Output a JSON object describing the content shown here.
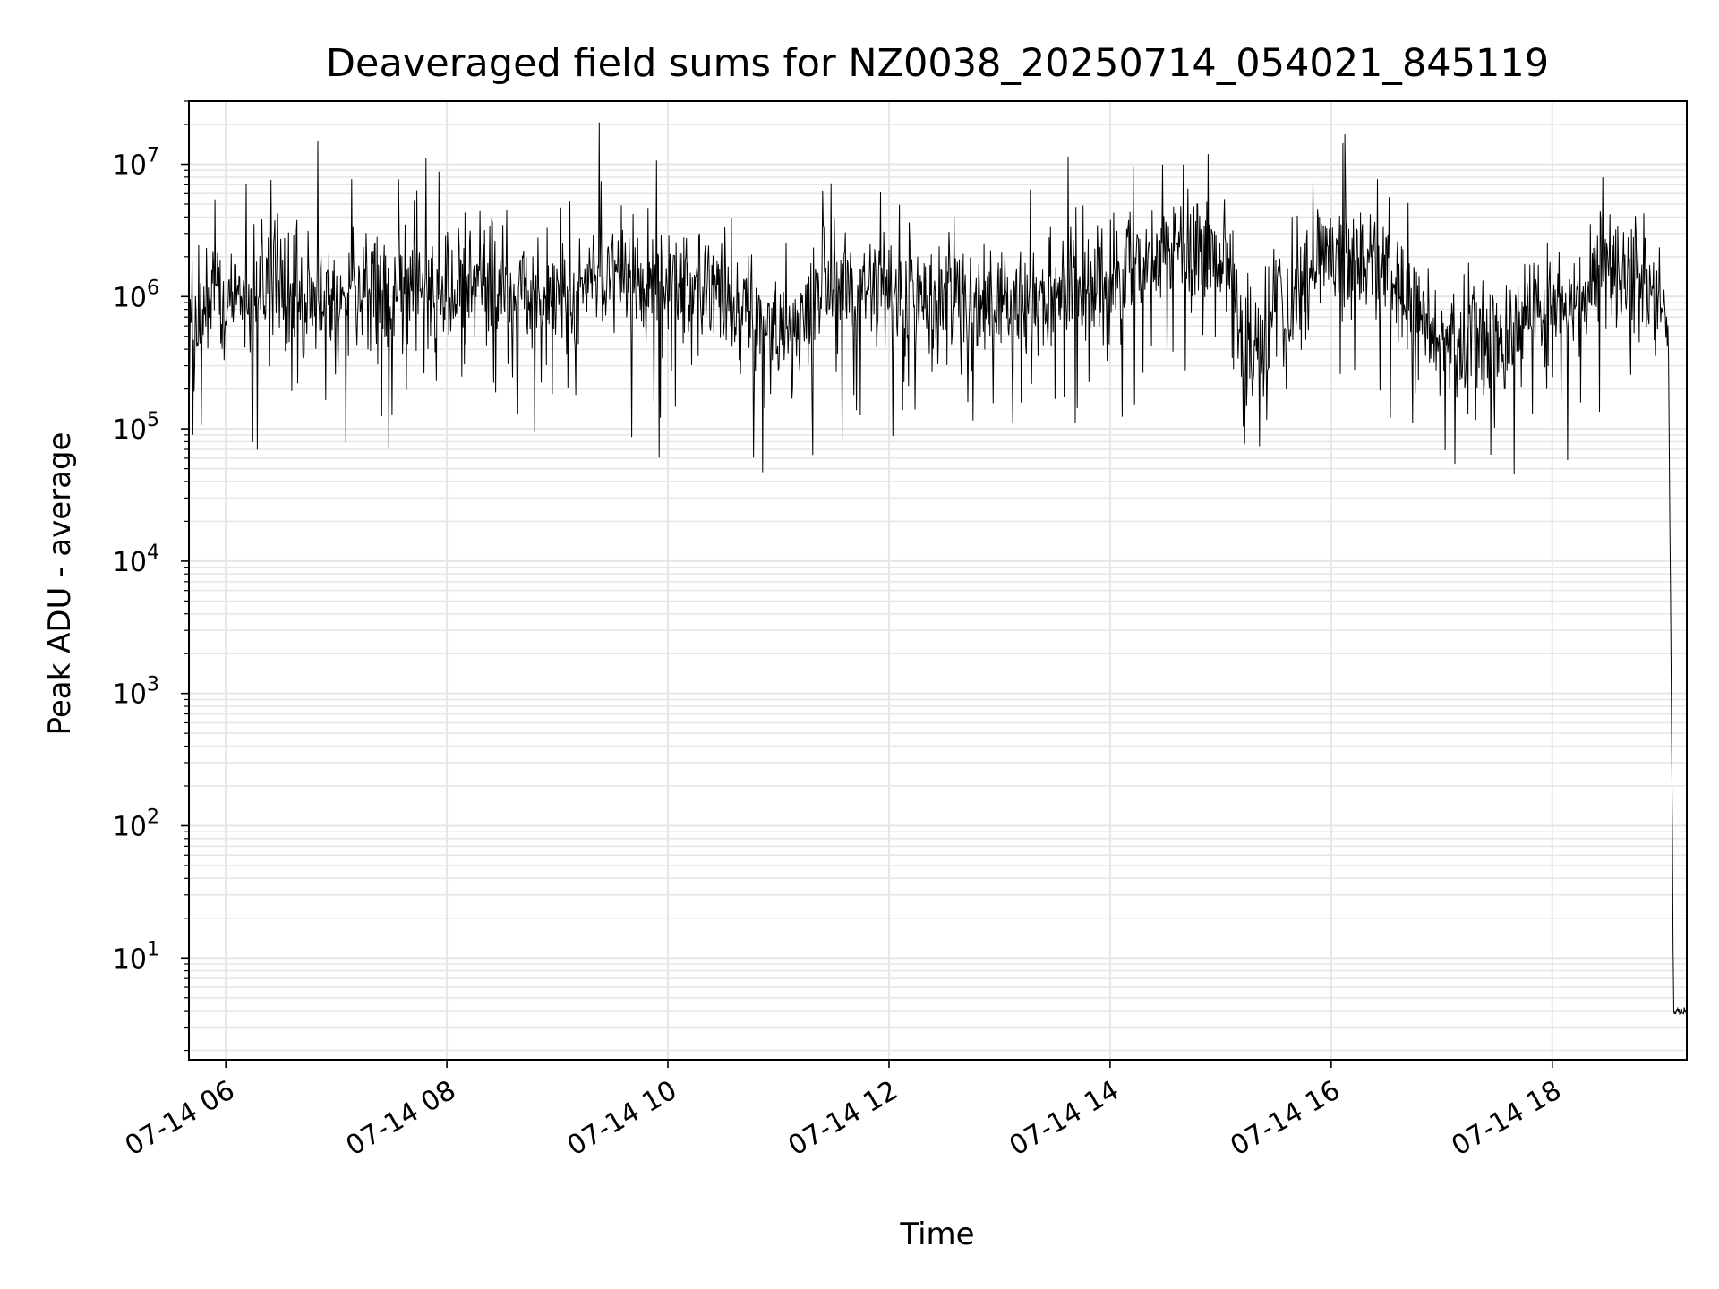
{
  "chart_data": {
    "type": "line",
    "title": "Deaveraged field sums for NZ0038_20250714_054021_845119",
    "xlabel": "Time",
    "ylabel": "Peak ADU - average",
    "yscale": "log",
    "ylim": [
      1.7,
      30000000
    ],
    "xlim": [
      "2025-07-14 05:40",
      "2025-07-14 19:13"
    ],
    "grid": true,
    "line_color": "#000000",
    "grid_color": "#e6e6e6",
    "x_ticks": [
      {
        "value": "2025-07-14 06:00",
        "label": "07-14 06"
      },
      {
        "value": "2025-07-14 08:00",
        "label": "07-14 08"
      },
      {
        "value": "2025-07-14 10:00",
        "label": "07-14 10"
      },
      {
        "value": "2025-07-14 12:00",
        "label": "07-14 12"
      },
      {
        "value": "2025-07-14 14:00",
        "label": "07-14 14"
      },
      {
        "value": "2025-07-14 16:00",
        "label": "07-14 16"
      },
      {
        "value": "2025-07-14 18:00",
        "label": "07-14 18"
      }
    ],
    "y_ticks": [
      {
        "value": 10,
        "base": "10",
        "exp": "1"
      },
      {
        "value": 100,
        "base": "10",
        "exp": "2"
      },
      {
        "value": 1000,
        "base": "10",
        "exp": "3"
      },
      {
        "value": 10000,
        "base": "10",
        "exp": "4"
      },
      {
        "value": 100000,
        "base": "10",
        "exp": "5"
      },
      {
        "value": 1000000,
        "base": "10",
        "exp": "6"
      },
      {
        "value": 10000000,
        "base": "10",
        "exp": "7"
      }
    ],
    "series": [
      {
        "x": [
          "2025-07-14 05:40",
          "2025-07-14 06:00",
          "2025-07-14 06:30",
          "2025-07-14 07:00",
          "2025-07-14 07:30",
          "2025-07-14 08:00",
          "2025-07-14 08:30",
          "2025-07-14 09:00",
          "2025-07-14 09:30",
          "2025-07-14 10:00",
          "2025-07-14 10:30",
          "2025-07-14 11:00",
          "2025-07-14 11:30",
          "2025-07-14 12:00",
          "2025-07-14 12:30",
          "2025-07-14 13:00",
          "2025-07-14 13:30",
          "2025-07-14 14:00",
          "2025-07-14 14:30",
          "2025-07-14 15:00",
          "2025-07-14 15:15",
          "2025-07-14 15:30",
          "2025-07-14 16:00",
          "2025-07-14 16:30",
          "2025-07-14 17:00",
          "2025-07-14 17:30",
          "2025-07-14 18:00",
          "2025-07-14 18:30",
          "2025-07-14 19:00",
          "2025-07-14 19:03",
          "2025-07-14 19:06",
          "2025-07-14 19:13"
        ],
        "y": [
          600000,
          900000,
          1100000,
          1000000,
          1000000,
          1100000,
          1000000,
          900000,
          1500000,
          1100000,
          1000000,
          500000,
          1200000,
          900000,
          1000000,
          900000,
          1000000,
          1200000,
          2000000,
          2500000,
          300000,
          800000,
          2000000,
          1800000,
          500000,
          400000,
          800000,
          1500000,
          1000000,
          500000,
          4,
          4
        ]
      }
    ]
  }
}
